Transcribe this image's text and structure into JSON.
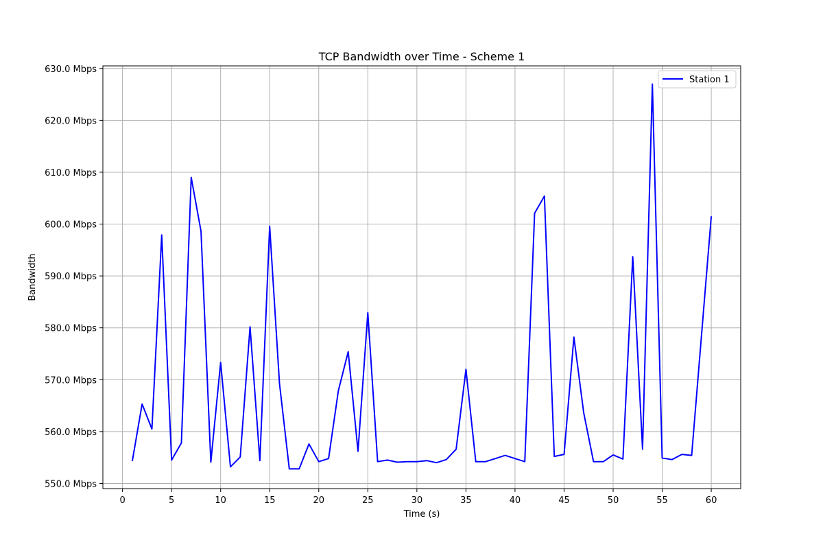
{
  "chart_data": {
    "type": "line",
    "title": "TCP Bandwidth over Time - Scheme 1",
    "xlabel": "Time (s)",
    "ylabel": "Bandwidth",
    "xlim": [
      -2,
      63
    ],
    "ylim": [
      549.0,
      630.5
    ],
    "xticks": [
      0,
      5,
      10,
      15,
      20,
      25,
      30,
      35,
      40,
      45,
      50,
      55,
      60
    ],
    "yticks": [
      550,
      560,
      570,
      580,
      590,
      600,
      610,
      620,
      630
    ],
    "ytick_suffix": " Mbps",
    "grid": true,
    "legend_position": "top-right",
    "series": [
      {
        "name": "Station 1",
        "color": "#0000ff",
        "x": [
          1,
          2,
          3,
          4,
          5,
          6,
          7,
          8,
          9,
          10,
          11,
          12,
          13,
          14,
          15,
          16,
          17,
          18,
          19,
          20,
          21,
          22,
          23,
          24,
          25,
          26,
          27,
          28,
          29,
          30,
          31,
          32,
          33,
          34,
          35,
          36,
          37,
          38,
          39,
          40,
          41,
          42,
          43,
          44,
          45,
          46,
          47,
          48,
          49,
          50,
          51,
          52,
          53,
          54,
          55,
          56,
          57,
          58,
          60
        ],
        "y": [
          554.3,
          565.3,
          560.5,
          597.9,
          554.5,
          557.8,
          609.0,
          598.6,
          554.1,
          573.3,
          553.2,
          555.1,
          580.2,
          554.4,
          599.6,
          569.3,
          552.8,
          552.8,
          557.6,
          554.2,
          554.8,
          567.9,
          575.4,
          556.2,
          582.9,
          554.2,
          554.5,
          554.1,
          554.2,
          554.2,
          554.4,
          554.0,
          554.6,
          556.6,
          572.0,
          554.2,
          554.2,
          554.8,
          555.4,
          554.8,
          554.2,
          602.1,
          605.4,
          555.2,
          555.6,
          578.2,
          563.6,
          554.2,
          554.2,
          555.5,
          554.7,
          593.7,
          556.6,
          627.0,
          554.9,
          554.6,
          555.6,
          555.4,
          601.5
        ]
      }
    ]
  }
}
